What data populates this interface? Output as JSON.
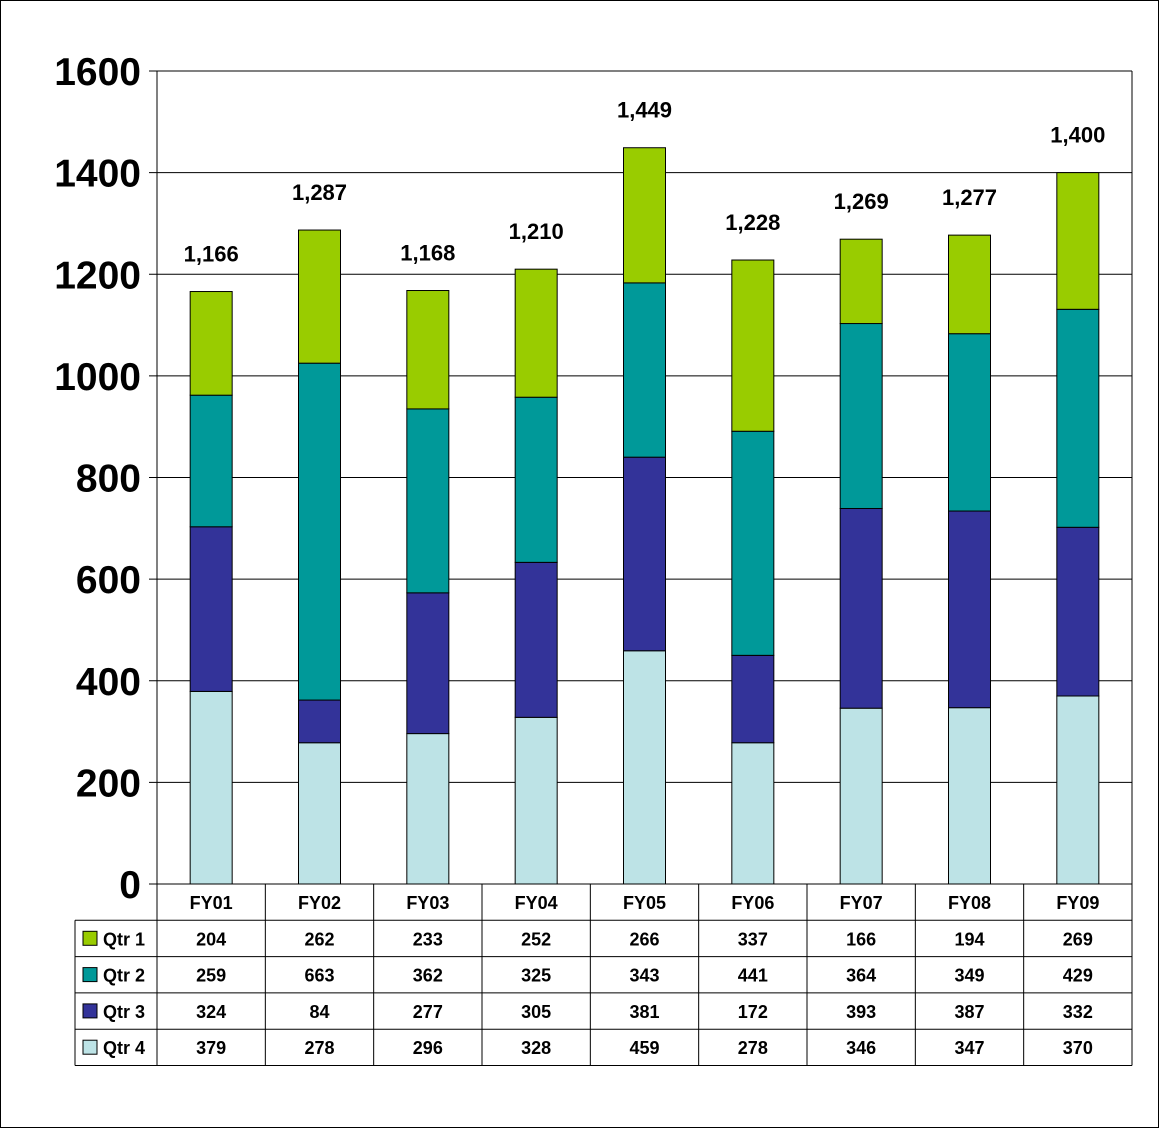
{
  "chart_data": {
    "type": "bar",
    "stacked": true,
    "title": "",
    "xlabel": "",
    "ylabel": "",
    "ylim": [
      0,
      1600
    ],
    "yticks": [
      0,
      200,
      400,
      600,
      800,
      1000,
      1200,
      1400,
      1600
    ],
    "grid": true,
    "legend": "data-table-left",
    "categories": [
      "FY01",
      "FY02",
      "FY03",
      "FY04",
      "FY05",
      "FY06",
      "FY07",
      "FY08",
      "FY09"
    ],
    "totals": [
      "1,166",
      "1,287",
      "1,168",
      "1,210",
      "1,449",
      "1,228",
      "1,269",
      "1,277",
      "1,400"
    ],
    "series": [
      {
        "name": "Qtr 1",
        "color": "#99CC00",
        "values": [
          204,
          262,
          233,
          252,
          266,
          337,
          166,
          194,
          269
        ]
      },
      {
        "name": "Qtr 2",
        "color": "#009999",
        "values": [
          259,
          663,
          362,
          325,
          343,
          441,
          364,
          349,
          429
        ]
      },
      {
        "name": "Qtr 3",
        "color": "#333399",
        "values": [
          324,
          84,
          277,
          305,
          381,
          172,
          393,
          387,
          332
        ]
      },
      {
        "name": "Qtr 4",
        "color": "#BDE3E6",
        "values": [
          379,
          278,
          296,
          328,
          459,
          278,
          346,
          347,
          370
        ]
      }
    ]
  }
}
